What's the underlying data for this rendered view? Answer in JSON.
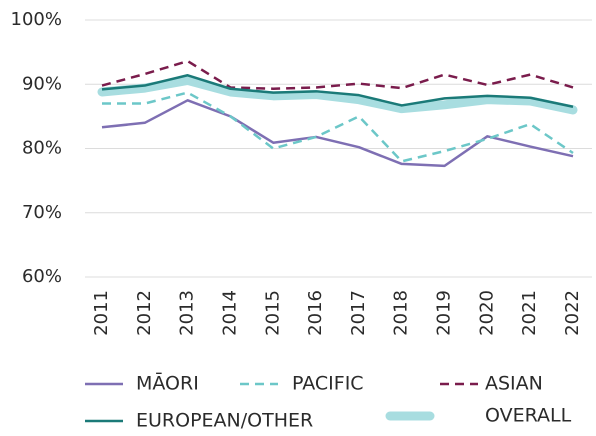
{
  "chart_data": {
    "type": "line",
    "categories": [
      "2011",
      "2012",
      "2013",
      "2014",
      "2015",
      "2016",
      "2017",
      "2018",
      "2019",
      "2020",
      "2021",
      "2022"
    ],
    "ylim": [
      60,
      100
    ],
    "yticks": [
      {
        "value": 60,
        "label": "60%"
      },
      {
        "value": 70,
        "label": "70%"
      },
      {
        "value": 80,
        "label": "80%"
      },
      {
        "value": 90,
        "label": "90%"
      },
      {
        "value": 100,
        "label": "100%"
      }
    ],
    "grid": true,
    "series": [
      {
        "name": "OVERALL",
        "color": "#a8dde0",
        "style": "band",
        "values": [
          88.8,
          89.4,
          90.6,
          88.8,
          88.2,
          88.4,
          87.6,
          86.2,
          86.8,
          87.6,
          87.4,
          86.0
        ]
      },
      {
        "name": "MĀORI",
        "color": "#7e6fb3",
        "style": "solid",
        "values": [
          83.3,
          84.0,
          87.5,
          85.0,
          80.9,
          81.8,
          80.2,
          77.6,
          77.3,
          81.9,
          80.3,
          78.8
        ]
      },
      {
        "name": "PACIFIC",
        "color": "#6cc7c8",
        "style": "dashed",
        "values": [
          87.0,
          87.0,
          88.7,
          85.0,
          80.0,
          81.8,
          85.0,
          78.0,
          79.6,
          81.5,
          83.8,
          79.3
        ]
      },
      {
        "name": "ASIAN",
        "color": "#7a1c4c",
        "style": "dashed",
        "values": [
          89.8,
          91.6,
          93.6,
          89.5,
          89.3,
          89.5,
          90.1,
          89.4,
          91.5,
          89.9,
          91.5,
          89.5
        ]
      },
      {
        "name": "EUROPEAN/OTHER",
        "color": "#1b7a78",
        "style": "solid",
        "values": [
          89.2,
          89.8,
          91.4,
          89.3,
          88.7,
          88.9,
          88.3,
          86.7,
          87.8,
          88.2,
          87.9,
          86.5
        ]
      }
    ]
  }
}
